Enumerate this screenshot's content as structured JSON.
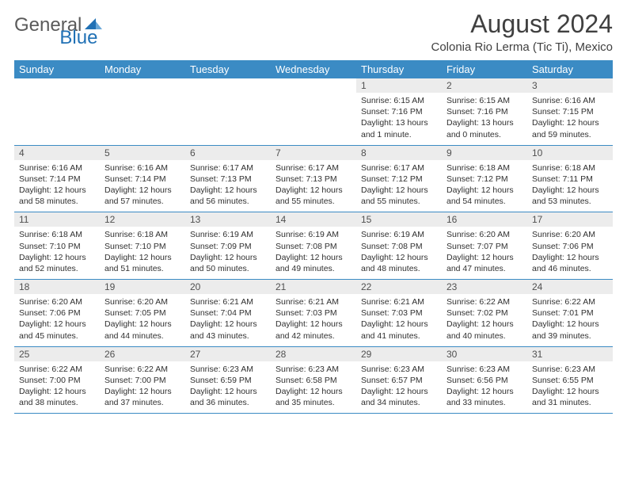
{
  "logo": {
    "general": "General",
    "blue": "Blue"
  },
  "title": "August 2024",
  "location": "Colonia Rio Lerma (Tic Ti), Mexico",
  "colors": {
    "header_bg": "#3b8bc4",
    "header_text": "#ffffff",
    "daynum_bg": "#ececec",
    "text": "#303030",
    "row_border": "#3b8bc4",
    "logo_gray": "#5a5a5a",
    "logo_blue": "#2171b5"
  },
  "dayNames": [
    "Sunday",
    "Monday",
    "Tuesday",
    "Wednesday",
    "Thursday",
    "Friday",
    "Saturday"
  ],
  "weeks": [
    [
      {
        "n": "",
        "sr": "",
        "ss": "",
        "dl": ""
      },
      {
        "n": "",
        "sr": "",
        "ss": "",
        "dl": ""
      },
      {
        "n": "",
        "sr": "",
        "ss": "",
        "dl": ""
      },
      {
        "n": "",
        "sr": "",
        "ss": "",
        "dl": ""
      },
      {
        "n": "1",
        "sr": "Sunrise: 6:15 AM",
        "ss": "Sunset: 7:16 PM",
        "dl": "Daylight: 13 hours and 1 minute."
      },
      {
        "n": "2",
        "sr": "Sunrise: 6:15 AM",
        "ss": "Sunset: 7:16 PM",
        "dl": "Daylight: 13 hours and 0 minutes."
      },
      {
        "n": "3",
        "sr": "Sunrise: 6:16 AM",
        "ss": "Sunset: 7:15 PM",
        "dl": "Daylight: 12 hours and 59 minutes."
      }
    ],
    [
      {
        "n": "4",
        "sr": "Sunrise: 6:16 AM",
        "ss": "Sunset: 7:14 PM",
        "dl": "Daylight: 12 hours and 58 minutes."
      },
      {
        "n": "5",
        "sr": "Sunrise: 6:16 AM",
        "ss": "Sunset: 7:14 PM",
        "dl": "Daylight: 12 hours and 57 minutes."
      },
      {
        "n": "6",
        "sr": "Sunrise: 6:17 AM",
        "ss": "Sunset: 7:13 PM",
        "dl": "Daylight: 12 hours and 56 minutes."
      },
      {
        "n": "7",
        "sr": "Sunrise: 6:17 AM",
        "ss": "Sunset: 7:13 PM",
        "dl": "Daylight: 12 hours and 55 minutes."
      },
      {
        "n": "8",
        "sr": "Sunrise: 6:17 AM",
        "ss": "Sunset: 7:12 PM",
        "dl": "Daylight: 12 hours and 55 minutes."
      },
      {
        "n": "9",
        "sr": "Sunrise: 6:18 AM",
        "ss": "Sunset: 7:12 PM",
        "dl": "Daylight: 12 hours and 54 minutes."
      },
      {
        "n": "10",
        "sr": "Sunrise: 6:18 AM",
        "ss": "Sunset: 7:11 PM",
        "dl": "Daylight: 12 hours and 53 minutes."
      }
    ],
    [
      {
        "n": "11",
        "sr": "Sunrise: 6:18 AM",
        "ss": "Sunset: 7:10 PM",
        "dl": "Daylight: 12 hours and 52 minutes."
      },
      {
        "n": "12",
        "sr": "Sunrise: 6:18 AM",
        "ss": "Sunset: 7:10 PM",
        "dl": "Daylight: 12 hours and 51 minutes."
      },
      {
        "n": "13",
        "sr": "Sunrise: 6:19 AM",
        "ss": "Sunset: 7:09 PM",
        "dl": "Daylight: 12 hours and 50 minutes."
      },
      {
        "n": "14",
        "sr": "Sunrise: 6:19 AM",
        "ss": "Sunset: 7:08 PM",
        "dl": "Daylight: 12 hours and 49 minutes."
      },
      {
        "n": "15",
        "sr": "Sunrise: 6:19 AM",
        "ss": "Sunset: 7:08 PM",
        "dl": "Daylight: 12 hours and 48 minutes."
      },
      {
        "n": "16",
        "sr": "Sunrise: 6:20 AM",
        "ss": "Sunset: 7:07 PM",
        "dl": "Daylight: 12 hours and 47 minutes."
      },
      {
        "n": "17",
        "sr": "Sunrise: 6:20 AM",
        "ss": "Sunset: 7:06 PM",
        "dl": "Daylight: 12 hours and 46 minutes."
      }
    ],
    [
      {
        "n": "18",
        "sr": "Sunrise: 6:20 AM",
        "ss": "Sunset: 7:06 PM",
        "dl": "Daylight: 12 hours and 45 minutes."
      },
      {
        "n": "19",
        "sr": "Sunrise: 6:20 AM",
        "ss": "Sunset: 7:05 PM",
        "dl": "Daylight: 12 hours and 44 minutes."
      },
      {
        "n": "20",
        "sr": "Sunrise: 6:21 AM",
        "ss": "Sunset: 7:04 PM",
        "dl": "Daylight: 12 hours and 43 minutes."
      },
      {
        "n": "21",
        "sr": "Sunrise: 6:21 AM",
        "ss": "Sunset: 7:03 PM",
        "dl": "Daylight: 12 hours and 42 minutes."
      },
      {
        "n": "22",
        "sr": "Sunrise: 6:21 AM",
        "ss": "Sunset: 7:03 PM",
        "dl": "Daylight: 12 hours and 41 minutes."
      },
      {
        "n": "23",
        "sr": "Sunrise: 6:22 AM",
        "ss": "Sunset: 7:02 PM",
        "dl": "Daylight: 12 hours and 40 minutes."
      },
      {
        "n": "24",
        "sr": "Sunrise: 6:22 AM",
        "ss": "Sunset: 7:01 PM",
        "dl": "Daylight: 12 hours and 39 minutes."
      }
    ],
    [
      {
        "n": "25",
        "sr": "Sunrise: 6:22 AM",
        "ss": "Sunset: 7:00 PM",
        "dl": "Daylight: 12 hours and 38 minutes."
      },
      {
        "n": "26",
        "sr": "Sunrise: 6:22 AM",
        "ss": "Sunset: 7:00 PM",
        "dl": "Daylight: 12 hours and 37 minutes."
      },
      {
        "n": "27",
        "sr": "Sunrise: 6:23 AM",
        "ss": "Sunset: 6:59 PM",
        "dl": "Daylight: 12 hours and 36 minutes."
      },
      {
        "n": "28",
        "sr": "Sunrise: 6:23 AM",
        "ss": "Sunset: 6:58 PM",
        "dl": "Daylight: 12 hours and 35 minutes."
      },
      {
        "n": "29",
        "sr": "Sunrise: 6:23 AM",
        "ss": "Sunset: 6:57 PM",
        "dl": "Daylight: 12 hours and 34 minutes."
      },
      {
        "n": "30",
        "sr": "Sunrise: 6:23 AM",
        "ss": "Sunset: 6:56 PM",
        "dl": "Daylight: 12 hours and 33 minutes."
      },
      {
        "n": "31",
        "sr": "Sunrise: 6:23 AM",
        "ss": "Sunset: 6:55 PM",
        "dl": "Daylight: 12 hours and 31 minutes."
      }
    ]
  ]
}
